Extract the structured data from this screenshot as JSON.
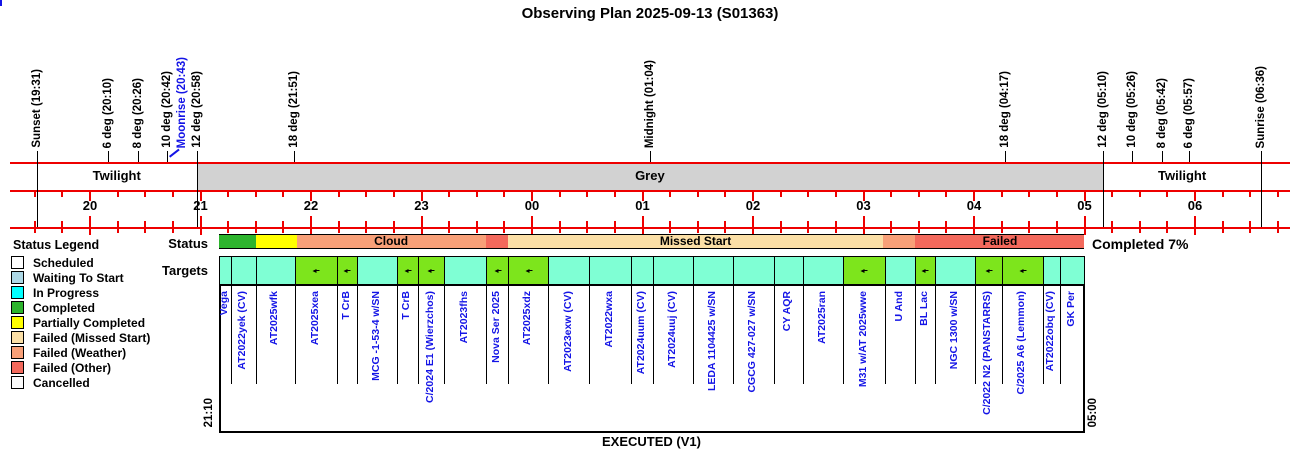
{
  "title": "Observing Plan 2025-09-13 (S01363)",
  "legend": {
    "title": "Status Legend",
    "items": [
      {
        "label": "Scheduled",
        "color": "#FFFFFF"
      },
      {
        "label": "Waiting To Start",
        "color": "#ADD8E6"
      },
      {
        "label": "In Progress",
        "color": "#00FFFF"
      },
      {
        "label": "Completed",
        "color": "#2DB42D"
      },
      {
        "label": "Partially Completed",
        "color": "#FFFF00"
      },
      {
        "label": "Failed (Missed Start)",
        "color": "#FBDFA6"
      },
      {
        "label": "Failed (Weather)",
        "color": "#F8A078"
      },
      {
        "label": "Failed (Other)",
        "color": "#F3695C"
      },
      {
        "label": "Cancelled",
        "color": "#FCFCFC"
      }
    ]
  },
  "colors": {
    "axis": "#EE0000",
    "grey_band": "#D2D2D2",
    "blue_label": "#1414E6",
    "cell_pending": "#7FFFD4",
    "cell_observed": "#7DE51C",
    "status": {
      "Completed": "#2DB42D",
      "Partially Completed": "#FFFF00",
      "Failed (Weather)": "#F8A078",
      "Failed (Other)": "#F3695C",
      "Failed (Missed Start)": "#FBDFA6"
    }
  },
  "chart_data": {
    "type": "gantt-timeline",
    "time_axis": {
      "start_hour": 19.267,
      "end_hour": 30.867,
      "minor_tick_minutes": 15,
      "hour_ticks": [
        {
          "label": "20",
          "t": 20
        },
        {
          "label": "21",
          "t": 21
        },
        {
          "label": "22",
          "t": 22
        },
        {
          "label": "23",
          "t": 23
        },
        {
          "label": "00",
          "t": 24
        },
        {
          "label": "01",
          "t": 25
        },
        {
          "label": "02",
          "t": 26
        },
        {
          "label": "03",
          "t": 27
        },
        {
          "label": "04",
          "t": 28
        },
        {
          "label": "05",
          "t": 29
        },
        {
          "label": "06",
          "t": 30
        }
      ]
    },
    "events": [
      {
        "label": "Sunset (19:31)",
        "t": 19.517,
        "line": "full"
      },
      {
        "label": "6 deg (20:10)",
        "t": 20.167
      },
      {
        "label": "8 deg (20:26)",
        "t": 20.433
      },
      {
        "label": "10 deg (20:42)",
        "t": 20.7
      },
      {
        "label": "Moonrise (20:43)",
        "t": 20.717,
        "blue": true,
        "label_offset": 12
      },
      {
        "label": "12 deg (20:58)",
        "t": 20.967,
        "line": "full"
      },
      {
        "label": "18 deg (21:51)",
        "t": 21.85
      },
      {
        "label": "Midnight (01:04)",
        "t": 25.067
      },
      {
        "label": "18 deg (04:17)",
        "t": 28.283
      },
      {
        "label": "12 deg (05:10)",
        "t": 29.167,
        "line": "full"
      },
      {
        "label": "10 deg (05:26)",
        "t": 29.433
      },
      {
        "label": "8 deg (05:42)",
        "t": 29.7
      },
      {
        "label": "6 deg (05:57)",
        "t": 29.95
      },
      {
        "label": "Sunrise (06:36)",
        "t": 30.6,
        "line": "full"
      }
    ],
    "bands": {
      "twilight_left": {
        "label": "Twilight",
        "from": 19.517,
        "to": 20.967
      },
      "grey": {
        "label": "Grey",
        "from": 20.967,
        "to": 29.167
      },
      "twilight_right": {
        "label": "Twilight",
        "from": 29.167,
        "to": 30.6
      }
    },
    "status_row": {
      "label": "Status",
      "note": "Completed 7%",
      "segments": [
        {
          "from": 21.167,
          "to": 21.5,
          "status": "Completed",
          "label": ""
        },
        {
          "from": 21.5,
          "to": 21.87,
          "status": "Partially Completed",
          "label": ""
        },
        {
          "from": 21.87,
          "to": 23.58,
          "status": "Failed (Weather)",
          "label": "Cloud"
        },
        {
          "from": 23.58,
          "to": 23.78,
          "status": "Failed (Other)",
          "label": ""
        },
        {
          "from": 23.78,
          "to": 27.18,
          "status": "Failed (Missed Start)",
          "label": "Missed Start"
        },
        {
          "from": 27.18,
          "to": 27.47,
          "status": "Failed (Weather)",
          "label": ""
        },
        {
          "from": 27.47,
          "to": 29.0,
          "status": "Failed (Other)",
          "label": "Failed"
        }
      ]
    },
    "targets_row": {
      "label": "Targets",
      "cells": [
        {
          "name": "Vega",
          "from": 21.167,
          "to": 21.276,
          "observed": false
        },
        {
          "name": "AT2022yek (CV)",
          "from": 21.276,
          "to": 21.502,
          "observed": false
        },
        {
          "name": "AT2025wfk",
          "from": 21.502,
          "to": 21.855,
          "observed": false
        },
        {
          "name": "AT2025xea",
          "from": 21.855,
          "to": 22.235,
          "observed": true
        },
        {
          "name": "T CrB",
          "from": 22.235,
          "to": 22.416,
          "observed": true
        },
        {
          "name": "MCG -1-53-4 w/SN",
          "from": 22.416,
          "to": 22.778,
          "observed": false
        },
        {
          "name": "T CrB",
          "from": 22.778,
          "to": 22.968,
          "observed": true
        },
        {
          "name": "C/2024 E1 (Wierzchos)",
          "from": 22.968,
          "to": 23.204,
          "observed": true
        },
        {
          "name": "AT2023fhs",
          "from": 23.204,
          "to": 23.584,
          "observed": false
        },
        {
          "name": "Nova Ser 2025",
          "from": 23.584,
          "to": 23.783,
          "observed": true
        },
        {
          "name": "AT2025xdz",
          "from": 23.783,
          "to": 24.145,
          "observed": true
        },
        {
          "name": "AT2023exw (CV)",
          "from": 24.145,
          "to": 24.516,
          "observed": false
        },
        {
          "name": "AT2022wxa",
          "from": 24.516,
          "to": 24.896,
          "observed": false
        },
        {
          "name": "AT2024uum (CV)",
          "from": 24.896,
          "to": 25.095,
          "observed": false
        },
        {
          "name": "AT2024uuj (CV)",
          "from": 25.095,
          "to": 25.457,
          "observed": false
        },
        {
          "name": "LEDA 1104425 w/SN",
          "from": 25.457,
          "to": 25.819,
          "observed": false
        },
        {
          "name": "CGCG 427-027 w/SN",
          "from": 25.819,
          "to": 26.19,
          "observed": false
        },
        {
          "name": "CY AQR",
          "from": 26.19,
          "to": 26.452,
          "observed": false
        },
        {
          "name": "AT2025ran",
          "from": 26.452,
          "to": 26.814,
          "observed": false
        },
        {
          "name": "M31 w/AT 2025wwe",
          "from": 26.814,
          "to": 27.194,
          "observed": true
        },
        {
          "name": "U And",
          "from": 27.194,
          "to": 27.466,
          "observed": false
        },
        {
          "name": "BL Lac",
          "from": 27.466,
          "to": 27.647,
          "observed": true
        },
        {
          "name": "NGC 1300 w/SN",
          "from": 27.647,
          "to": 28.009,
          "observed": false
        },
        {
          "name": "C/2022 N2 (PANSTARRS)",
          "from": 28.009,
          "to": 28.253,
          "observed": true
        },
        {
          "name": "C/2025 A6 (Lemmon)",
          "from": 28.253,
          "to": 28.624,
          "observed": true
        },
        {
          "name": "AT2022obq (CV)",
          "from": 28.624,
          "to": 28.778,
          "observed": false
        },
        {
          "name": "GK Per",
          "from": 28.778,
          "to": 29.0,
          "observed": false
        }
      ]
    },
    "executed_panel": {
      "caption": "EXECUTED (V1)",
      "start_time": "21:10",
      "end_time": "05:00"
    }
  }
}
